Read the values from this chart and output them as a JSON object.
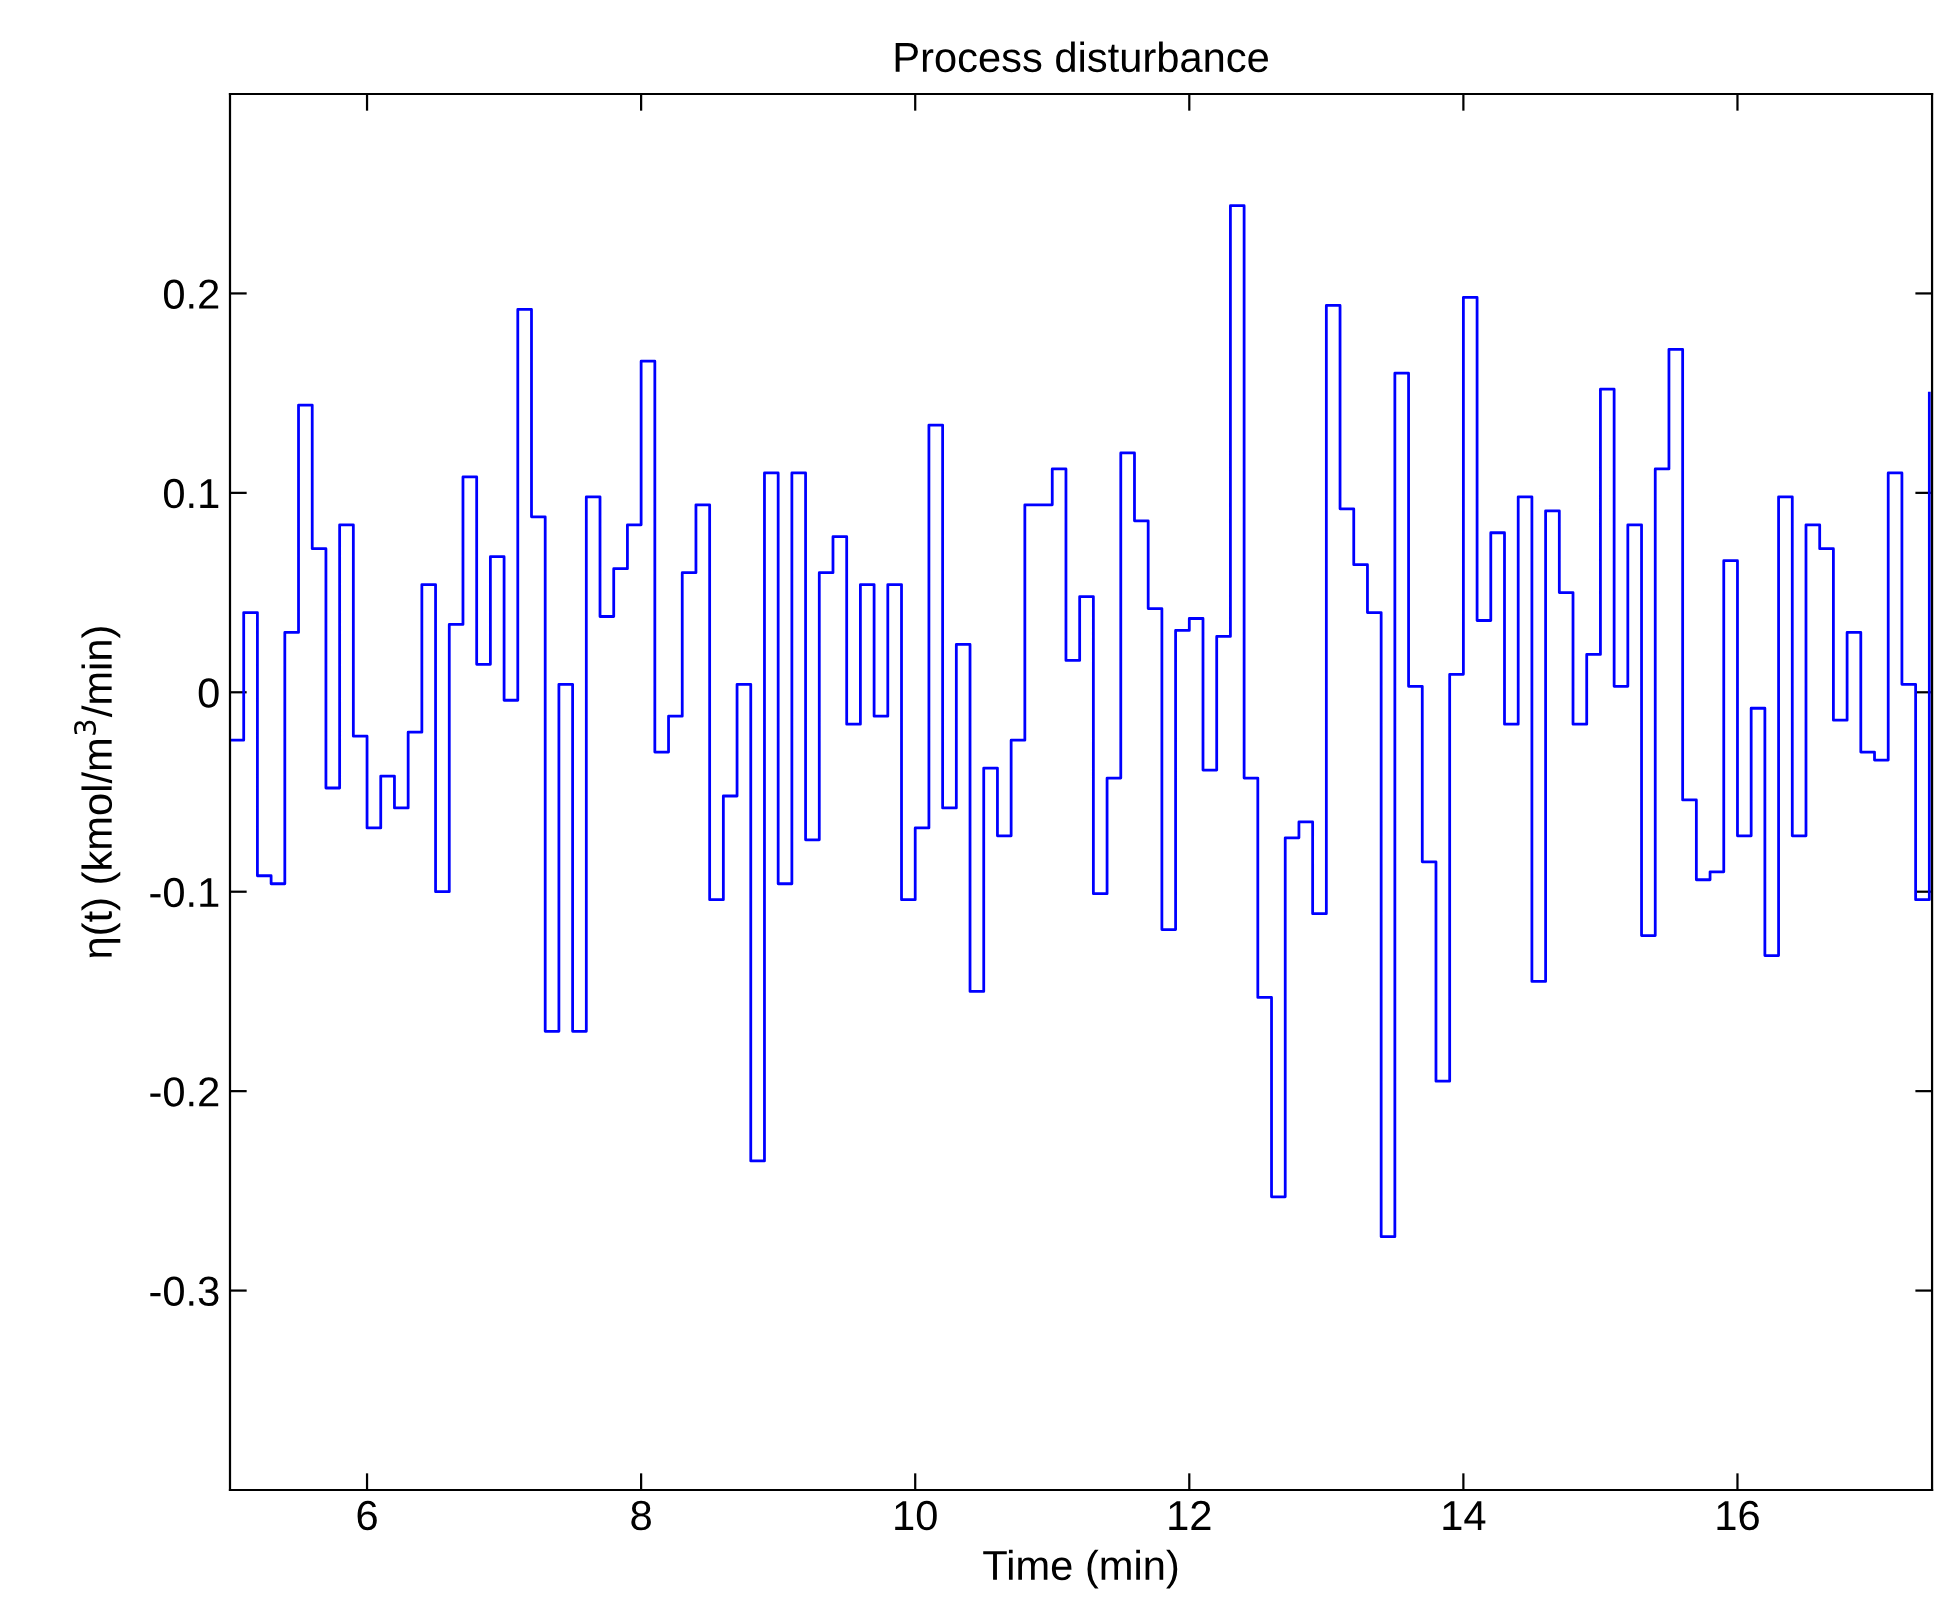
{
  "chart_data": {
    "type": "step",
    "title": "Process disturbance",
    "xlabel": "Time (min)",
    "ylabel": "η(t) (kmol/m$^{3}$/min)",
    "xlim": [
      5,
      17.42
    ],
    "ylim": [
      -0.4,
      0.3
    ],
    "xticks": [
      6,
      8,
      10,
      12,
      14,
      16
    ],
    "yticks": [
      -0.3,
      -0.2,
      -0.1,
      0,
      0.1,
      0.2
    ],
    "grid": false,
    "x": [
      5.0,
      5.1,
      5.2,
      5.3,
      5.4,
      5.5,
      5.6,
      5.7,
      5.8,
      5.9,
      6.0,
      6.1,
      6.2,
      6.3,
      6.4,
      6.5,
      6.6,
      6.7,
      6.8,
      6.9,
      7.0,
      7.1,
      7.2,
      7.3,
      7.4,
      7.5,
      7.6,
      7.7,
      7.8,
      7.9,
      8.0,
      8.1,
      8.2,
      8.3,
      8.4,
      8.5,
      8.6,
      8.7,
      8.8,
      8.9,
      9.0,
      9.1,
      9.2,
      9.3,
      9.4,
      9.5,
      9.6,
      9.7,
      9.8,
      9.9,
      10.0,
      10.1,
      10.2,
      10.3,
      10.4,
      10.5,
      10.6,
      10.7,
      10.8,
      10.9,
      11.0,
      11.1,
      11.2,
      11.3,
      11.4,
      11.5,
      11.6,
      11.7,
      11.8,
      11.9,
      12.0,
      12.1,
      12.2,
      12.3,
      12.4,
      12.5,
      12.6,
      12.7,
      12.8,
      12.9,
      13.0,
      13.1,
      13.2,
      13.3,
      13.4,
      13.5,
      13.6,
      13.7,
      13.8,
      13.9,
      14.0,
      14.1,
      14.2,
      14.3,
      14.4,
      14.5,
      14.6,
      14.7,
      14.8,
      14.9,
      15.0,
      15.1,
      15.2,
      15.3,
      15.4,
      15.5,
      15.6,
      15.7,
      15.8,
      15.9,
      16.0,
      16.1,
      16.2,
      16.3,
      16.4,
      16.5,
      16.6,
      16.7,
      16.8,
      16.9,
      17.0,
      17.1,
      17.2,
      17.3,
      17.4
    ],
    "series": [
      {
        "color": "#0000ff",
        "values": [
          -0.024,
          0.04,
          -0.092,
          -0.096,
          0.03,
          0.144,
          0.072,
          -0.048,
          0.084,
          -0.022,
          -0.068,
          -0.042,
          -0.058,
          -0.02,
          0.054,
          -0.1,
          0.034,
          0.108,
          0.014,
          0.068,
          -0.004,
          0.192,
          0.088,
          -0.17,
          0.004,
          -0.17,
          0.098,
          0.038,
          0.062,
          0.084,
          0.166,
          -0.03,
          -0.012,
          0.06,
          0.094,
          -0.104,
          -0.052,
          0.004,
          -0.235,
          0.11,
          -0.096,
          0.11,
          -0.074,
          0.06,
          0.078,
          -0.016,
          0.054,
          -0.012,
          0.054,
          -0.104,
          -0.068,
          0.134,
          -0.058,
          0.024,
          -0.15,
          -0.038,
          -0.072,
          -0.024,
          0.094,
          0.094,
          0.112,
          0.016,
          0.048,
          -0.101,
          -0.043,
          0.12,
          0.086,
          0.042,
          -0.119,
          0.031,
          0.037,
          -0.039,
          0.028,
          0.244,
          -0.043,
          -0.153,
          -0.253,
          -0.073,
          -0.065,
          -0.111,
          0.194,
          0.092,
          0.064,
          0.04,
          -0.273,
          0.16,
          0.003,
          -0.085,
          -0.195,
          0.009,
          0.198,
          0.036,
          0.08,
          -0.016,
          0.098,
          -0.145,
          0.091,
          0.05,
          -0.016,
          0.019,
          0.152,
          0.003,
          0.084,
          -0.122,
          0.112,
          0.172,
          -0.054,
          -0.094,
          -0.09,
          0.066,
          -0.072,
          -0.008,
          -0.132,
          0.098,
          -0.072,
          0.084,
          0.072,
          -0.014,
          0.03,
          -0.03,
          -0.034,
          0.11,
          0.004,
          -0.104,
          0.15
        ]
      }
    ]
  }
}
